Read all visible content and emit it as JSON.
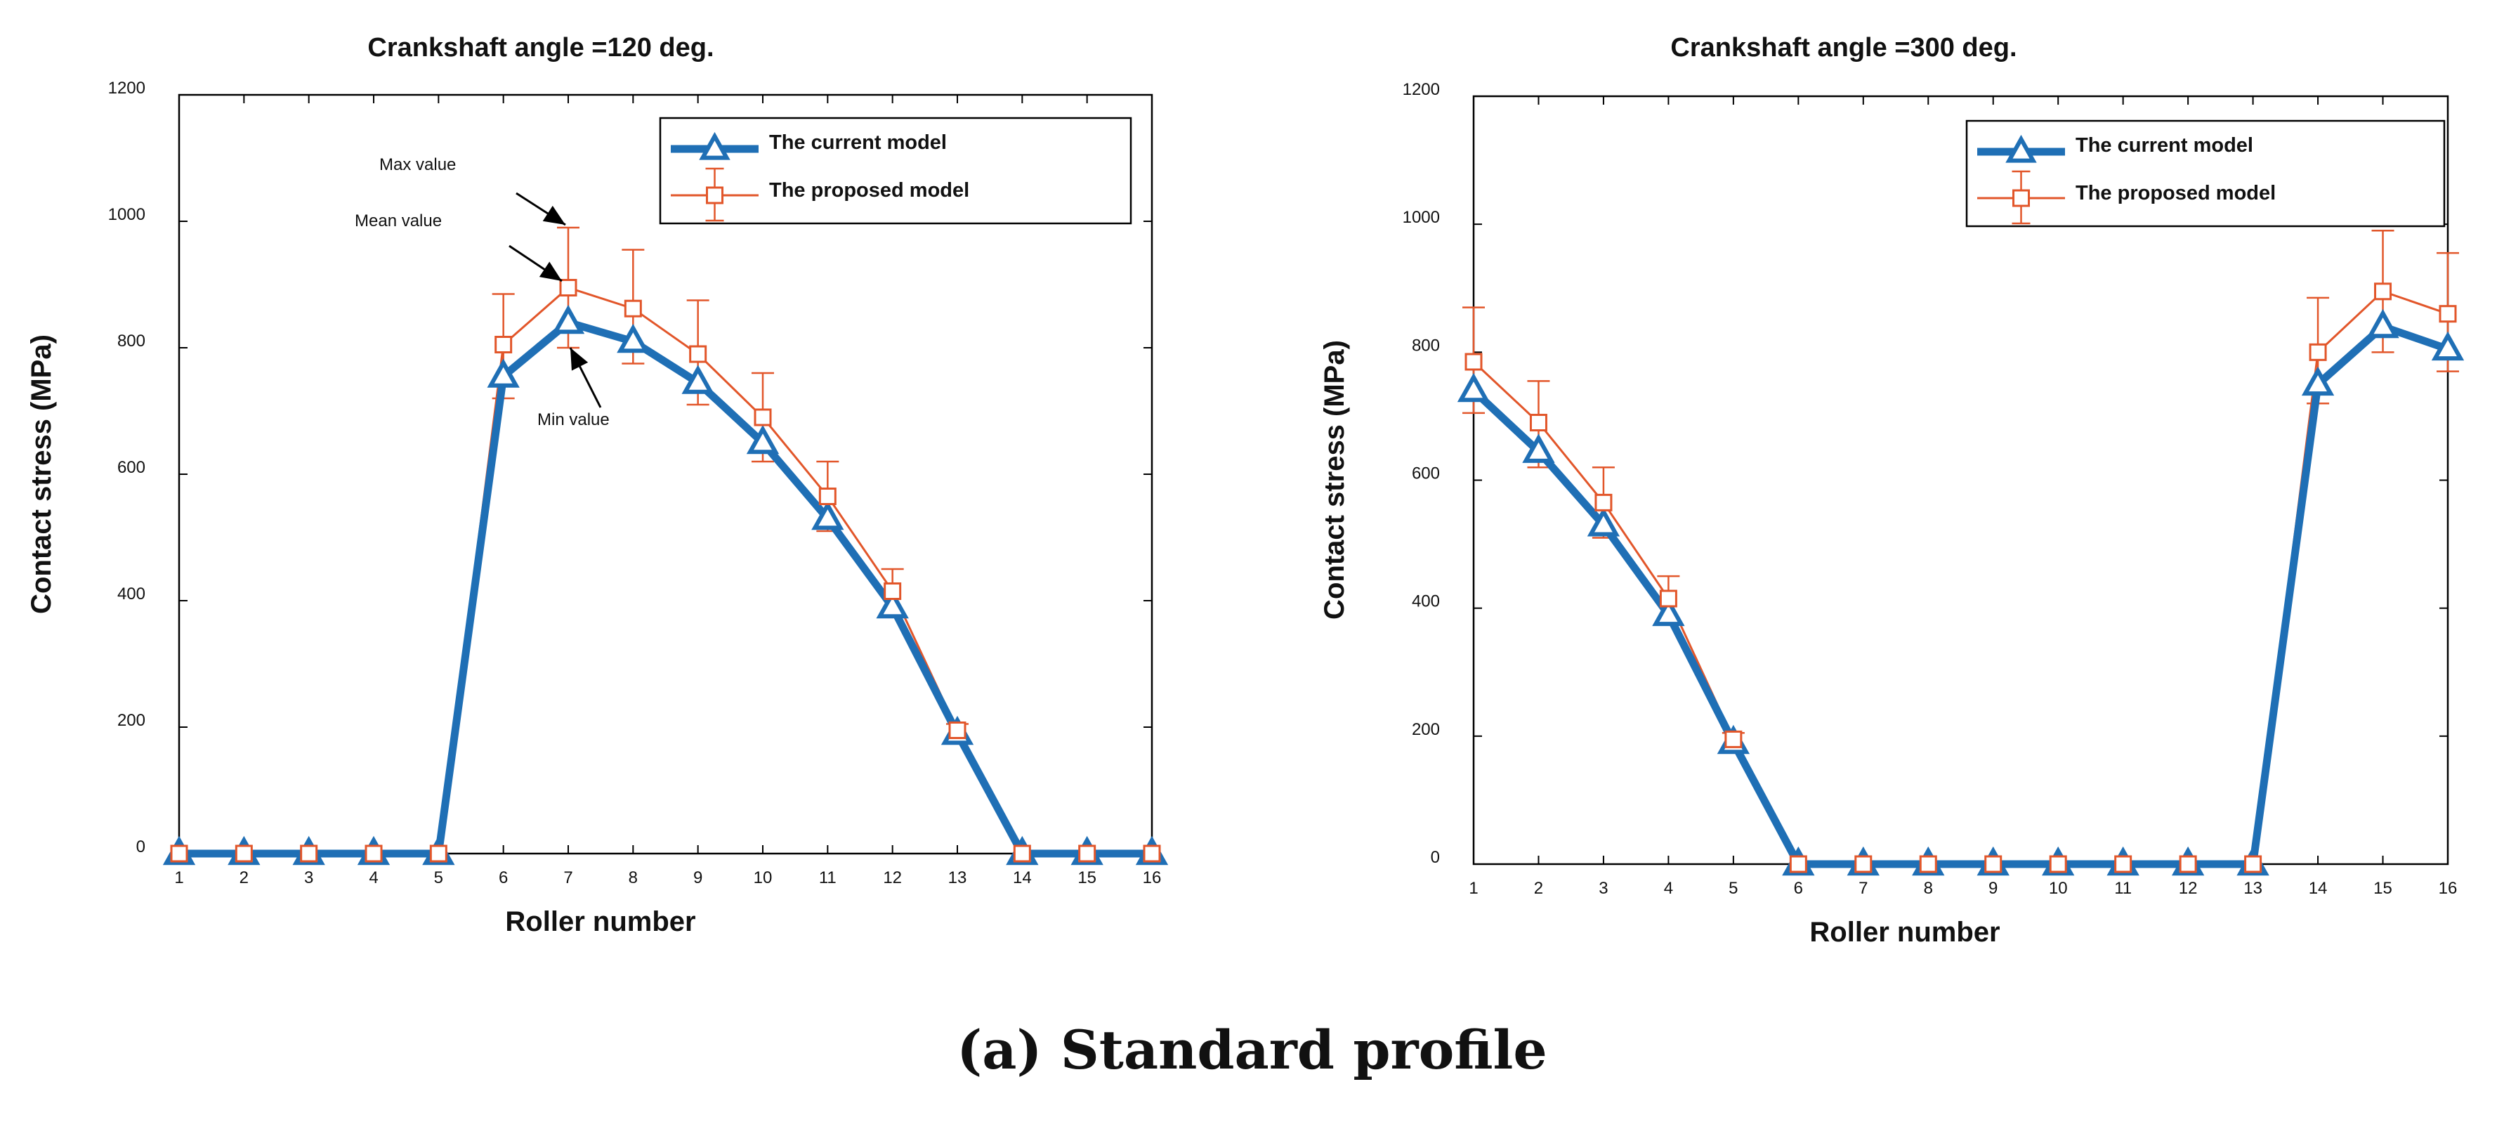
{
  "figure": {
    "caption": "(a) Standard profile"
  },
  "colors": {
    "current": "#1f6fb5",
    "proposed": "#e2562a",
    "axis": "#000000",
    "text": "#111111"
  },
  "chart_data": [
    {
      "type": "line",
      "title": "Crankshaft angle =120 deg.",
      "xlabel": "Roller number",
      "ylabel": "Contact stress (MPa)",
      "x": [
        1,
        2,
        3,
        4,
        5,
        6,
        7,
        8,
        9,
        10,
        11,
        12,
        13,
        14,
        15,
        16
      ],
      "xlim": [
        1,
        16
      ],
      "ylim": [
        0,
        1200
      ],
      "yticks": [
        0,
        200,
        400,
        600,
        800,
        1000,
        1200
      ],
      "grid": false,
      "legend_position": "top-right",
      "series": [
        {
          "name": "The current model",
          "marker": "triangle",
          "values": [
            0,
            0,
            0,
            0,
            0,
            755,
            840,
            810,
            745,
            650,
            530,
            390,
            190,
            0,
            0,
            0
          ]
        },
        {
          "name": "The proposed model",
          "marker": "square",
          "values": [
            0,
            0,
            0,
            0,
            0,
            805,
            895,
            862,
            790,
            690,
            565,
            415,
            195,
            0,
            0,
            0
          ],
          "error_low": [
            0,
            0,
            0,
            0,
            0,
            720,
            800,
            775,
            710,
            620,
            510,
            380,
            185,
            0,
            0,
            0
          ],
          "error_high": [
            0,
            0,
            0,
            0,
            0,
            885,
            990,
            955,
            875,
            760,
            620,
            450,
            205,
            0,
            0,
            0
          ]
        }
      ],
      "annotations": [
        {
          "text": "Max value",
          "arrow_to": [
            7,
            990
          ]
        },
        {
          "text": "Mean value",
          "arrow_to": [
            7,
            895
          ]
        },
        {
          "text": "Min value",
          "arrow_to": [
            7,
            800
          ]
        }
      ]
    },
    {
      "type": "line",
      "title": "Crankshaft angle =300 deg.",
      "xlabel": "Roller number",
      "ylabel": "Contact stress (MPa)",
      "x": [
        1,
        2,
        3,
        4,
        5,
        6,
        7,
        8,
        9,
        10,
        11,
        12,
        13,
        14,
        15,
        16
      ],
      "xlim": [
        1,
        16
      ],
      "ylim": [
        0,
        1200
      ],
      "yticks": [
        0,
        200,
        400,
        600,
        800,
        1000,
        1200
      ],
      "grid": false,
      "legend_position": "top-right",
      "series": [
        {
          "name": "The current model",
          "marker": "triangle",
          "values": [
            740,
            645,
            530,
            390,
            190,
            0,
            0,
            0,
            0,
            0,
            0,
            0,
            0,
            750,
            840,
            805
          ]
        },
        {
          "name": "The proposed model",
          "marker": "square",
          "values": [
            785,
            690,
            565,
            415,
            195,
            0,
            0,
            0,
            0,
            0,
            0,
            0,
            0,
            800,
            895,
            860
          ],
          "error_low": [
            705,
            620,
            510,
            380,
            185,
            0,
            0,
            0,
            0,
            0,
            0,
            0,
            0,
            720,
            800,
            770
          ],
          "error_high": [
            870,
            755,
            620,
            450,
            205,
            0,
            0,
            0,
            0,
            0,
            0,
            0,
            0,
            885,
            990,
            955
          ]
        }
      ],
      "annotations": []
    }
  ]
}
